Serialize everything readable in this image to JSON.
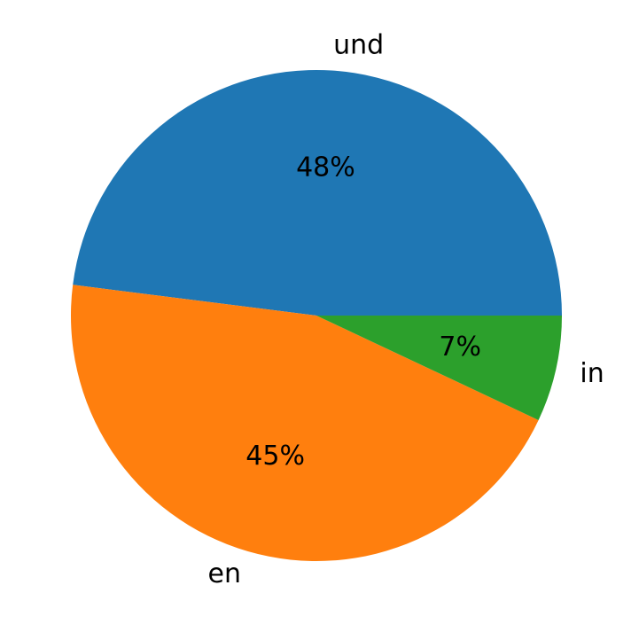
{
  "chart_data": {
    "type": "pie",
    "categories": [
      "und",
      "en",
      "in"
    ],
    "values": [
      48,
      45,
      7
    ],
    "value_labels": [
      "48%",
      "45%",
      "7%"
    ],
    "colors": [
      "#1f77b4",
      "#ff7f0e",
      "#2ca02c"
    ],
    "start_angle": 0,
    "direction": "counterclockwise"
  }
}
